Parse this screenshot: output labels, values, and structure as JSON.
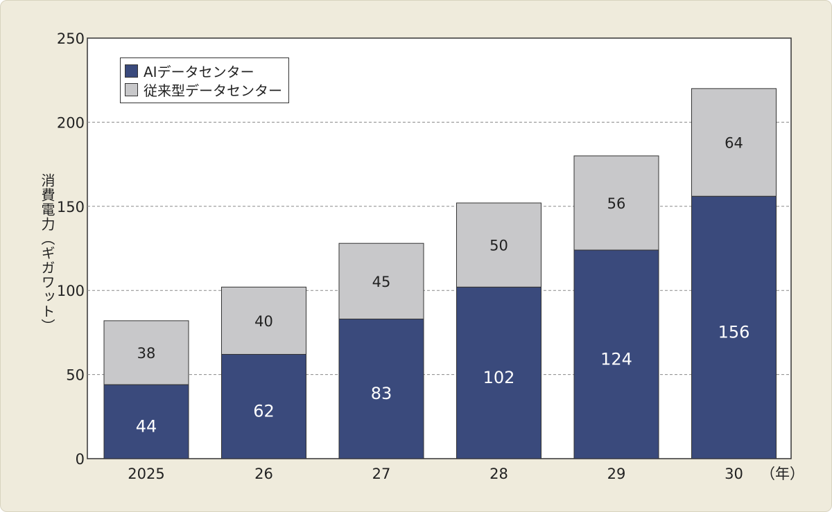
{
  "chart_data": {
    "type": "bar",
    "stacked": true,
    "categories": [
      "2025",
      "26",
      "27",
      "28",
      "29",
      "30"
    ],
    "x_unit": "（年）",
    "ylabel": "消費電力（ギガワット）",
    "ylim": [
      0,
      250
    ],
    "yticks": [
      0,
      50,
      100,
      150,
      200,
      250
    ],
    "grid": "horizontal dashed",
    "legend_position": "top-left",
    "series": [
      {
        "name": "AIデータセンター",
        "color": "#3a4a7c",
        "label_color": "#ffffff",
        "values": [
          44,
          62,
          83,
          102,
          124,
          156
        ]
      },
      {
        "name": "従来型データセンター",
        "color": "#c8c8ca",
        "label_color": "#222222",
        "values": [
          38,
          40,
          45,
          50,
          56,
          64
        ]
      }
    ]
  },
  "colors": {
    "background": "#efebdc",
    "plot": "#ffffff",
    "grid": "#888888"
  }
}
